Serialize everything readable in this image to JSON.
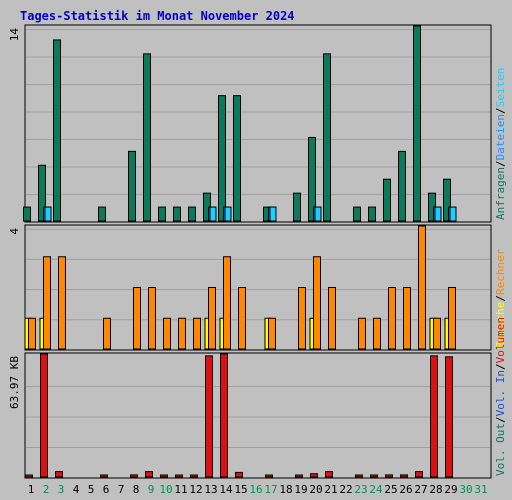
{
  "page": {
    "title": "Tages-Statistik im Monat November 2024"
  },
  "colors": {
    "background": "#c0c0c0",
    "title": "#0000cc",
    "gridline": "#a0a0a0",
    "anfragen": "#0a7a5a",
    "dateien": "#1e90ff",
    "seiten": "#22ccff",
    "besuche": "#ffff00",
    "rechner": "#ff8800",
    "kb": "#dd1111",
    "vol_in": "#1e4fcc",
    "vol_out": "#0a7a5a",
    "weekend": "#0a8a5a"
  },
  "chart_data": [
    {
      "type": "bar",
      "panel": "hits",
      "ytick_label": "14",
      "ylim": [
        0,
        14
      ],
      "legend": [
        "Anfragen",
        "Dateien",
        "Seiten"
      ],
      "legend_separator": "/",
      "categories": [
        "1",
        "2",
        "3",
        "4",
        "5",
        "6",
        "7",
        "8",
        "9",
        "10",
        "11",
        "12",
        "13",
        "14",
        "15",
        "16",
        "17",
        "18",
        "19",
        "20",
        "21",
        "22",
        "23",
        "24",
        "25",
        "26",
        "27",
        "28",
        "29",
        "30",
        "31"
      ],
      "series": [
        {
          "name": "Anfragen",
          "values": [
            1,
            4,
            13,
            0,
            0,
            1,
            0,
            5,
            12,
            1,
            1,
            1,
            2,
            9,
            9,
            0,
            1,
            0,
            2,
            6,
            12,
            0,
            1,
            1,
            3,
            5,
            14,
            2,
            3,
            0,
            0
          ]
        },
        {
          "name": "Dateien",
          "values": [
            0,
            1,
            0,
            0,
            0,
            0,
            0,
            0,
            0,
            0,
            0,
            0,
            1,
            1,
            0,
            0,
            1,
            0,
            0,
            1,
            0,
            0,
            0,
            0,
            0,
            0,
            0,
            1,
            1,
            0,
            0
          ]
        },
        {
          "name": "Seiten",
          "values": [
            0,
            1,
            0,
            0,
            0,
            0,
            0,
            0,
            0,
            0,
            0,
            0,
            1,
            1,
            0,
            0,
            1,
            0,
            0,
            1,
            0,
            0,
            0,
            0,
            0,
            0,
            0,
            1,
            1,
            0,
            0
          ]
        }
      ]
    },
    {
      "type": "bar",
      "panel": "visits",
      "ytick_label": "4",
      "ylim": [
        0,
        4
      ],
      "legend": [
        "Besuche",
        "Rechner"
      ],
      "legend_separator": "/",
      "series": [
        {
          "name": "Besuche",
          "values": [
            1,
            1,
            0,
            0,
            0,
            0,
            0,
            0,
            0,
            0,
            0,
            0,
            1,
            1,
            0,
            0,
            1,
            0,
            0,
            1,
            0,
            0,
            0,
            0,
            0,
            0,
            0,
            1,
            1,
            0,
            0
          ]
        },
        {
          "name": "Rechner",
          "values": [
            1,
            3,
            3,
            0,
            0,
            1,
            0,
            2,
            2,
            1,
            1,
            1,
            2,
            3,
            2,
            0,
            1,
            0,
            2,
            3,
            2,
            0,
            1,
            1,
            2,
            2,
            4,
            1,
            2,
            0,
            0
          ]
        }
      ]
    },
    {
      "type": "bar",
      "panel": "volume",
      "ytick_label": "63.97 KB",
      "ylim": [
        0,
        63.97
      ],
      "legend": [
        "Vol. Out",
        "Vol. In",
        "Volumen"
      ],
      "legend_separator": "/",
      "series": [
        {
          "name": "Volumen",
          "values": [
            0.6,
            63.97,
            2.8,
            0,
            0,
            0.6,
            0,
            1.1,
            2.8,
            0.6,
            0.6,
            0.6,
            63.0,
            63.97,
            2.4,
            0,
            0.6,
            0,
            0.6,
            1.7,
            2.8,
            0,
            0.6,
            0.6,
            1.1,
            1.1,
            2.8,
            63.0,
            62.5,
            0,
            0
          ]
        }
      ]
    }
  ],
  "x_axis": {
    "labels": [
      "1",
      "2",
      "3",
      "4",
      "5",
      "6",
      "7",
      "8",
      "9",
      "10",
      "11",
      "12",
      "13",
      "14",
      "15",
      "16",
      "17",
      "18",
      "19",
      "20",
      "21",
      "22",
      "23",
      "24",
      "25",
      "26",
      "27",
      "28",
      "29",
      "30",
      "31"
    ],
    "weekend_days": [
      2,
      3,
      9,
      10,
      16,
      17,
      23,
      24,
      30,
      31
    ]
  }
}
